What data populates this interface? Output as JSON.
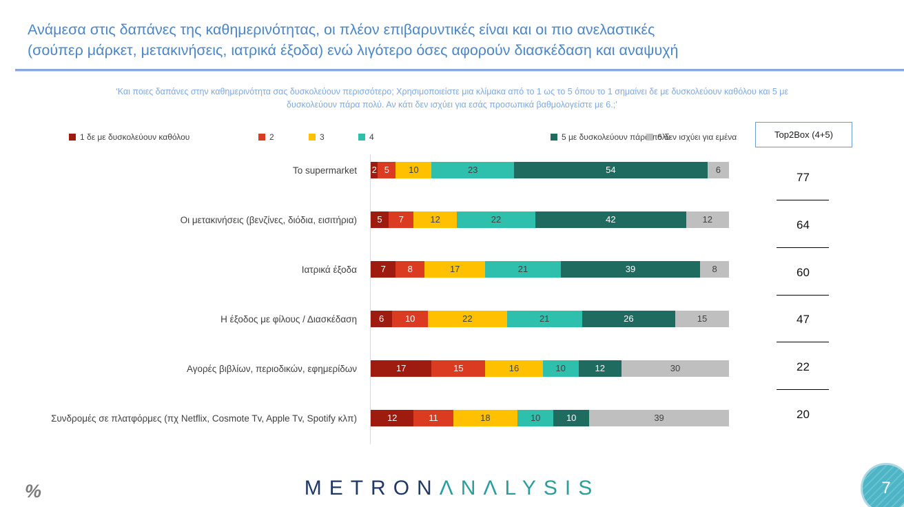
{
  "header": {
    "title_line1": "Ανάμεσα στις δαπάνες της καθημερινότητας, οι πλέον επιβαρυντικές είναι και οι πιο ανελαστικές",
    "title_line2": "(σούπερ μάρκετ, μετακινήσεις, ιατρικά έξοδα) ενώ λιγότερο όσες αφορούν διασκέδαση και αναψυχή",
    "subtitle_line1": "‘Και ποιες δαπάνες στην καθημερινότητα σας δυσκολεύουν περισσότερο; Χρησιμοποιείστε μια κλίμακα από το 1 ως το 5 όπου το 1 σημαίνει δε με δυσκολεύουν καθόλου και 5 με",
    "subtitle_line2": "δυσκολεύουν πάρα πολύ. Αν κάτι δεν ισχύει για εσάς προσωπικά βαθμολογείστε με 6.;’"
  },
  "legend": [
    {
      "label": "1  δε με δυσκολεύουν καθόλου",
      "color": "#9E1B10"
    },
    {
      "label": "2",
      "color": "#DA3B21"
    },
    {
      "label": "3",
      "color": "#FFC000"
    },
    {
      "label": "4",
      "color": "#2FBFAD"
    },
    {
      "label": "5 με δυσκολεύουν πάρα πολύ",
      "color": "#1F6B60"
    },
    {
      "label": "6 δεν ισχύει για εμένα",
      "color": "#BFBFBF"
    }
  ],
  "top2box": {
    "label": "Top2Box (4+5)",
    "values": [
      77,
      64,
      60,
      47,
      22,
      20
    ]
  },
  "chart_data": {
    "type": "bar",
    "stacked": true,
    "orientation": "horizontal",
    "xlim": [
      0,
      100
    ],
    "value_labels": true,
    "categories": [
      "Το supermarket",
      "Οι μετακινήσεις (βενζίνες, διόδια, εισιτήρια)",
      "Ιατρικά έξοδα",
      "Η έξοδος με φίλους / Διασκέδαση",
      "Αγορές βιβλίων, περιοδικών, εφημερίδων",
      "Συνδρομές σε πλατφόρμες (πχ Netflix, Cosmote Tv, Apple Tv, Spotify κλπ)"
    ],
    "series": [
      {
        "name": "1 δε με δυσκολεύουν καθόλου",
        "color": "#9E1B10",
        "label_color": "#FFFFFF",
        "values": [
          2,
          5,
          7,
          6,
          17,
          12
        ]
      },
      {
        "name": "2",
        "color": "#DA3B21",
        "label_color": "#FFFFFF",
        "values": [
          5,
          7,
          8,
          10,
          15,
          11
        ]
      },
      {
        "name": "3",
        "color": "#FFC000",
        "label_color": "#404040",
        "values": [
          10,
          12,
          17,
          22,
          16,
          18
        ]
      },
      {
        "name": "4",
        "color": "#2FBFAD",
        "label_color": "#404040",
        "values": [
          23,
          22,
          21,
          21,
          10,
          10
        ]
      },
      {
        "name": "5 με δυσκολεύουν πάρα πολύ",
        "color": "#1F6B60",
        "label_color": "#FFFFFF",
        "values": [
          54,
          42,
          39,
          26,
          12,
          10
        ]
      },
      {
        "name": "6 δεν ισχύει για εμένα",
        "color": "#BFBFBF",
        "label_color": "#404040",
        "values": [
          6,
          12,
          8,
          15,
          30,
          39
        ]
      }
    ]
  },
  "footer": {
    "logo_metron": "METRON",
    "logo_analysis": "ΛNΛLYSIS",
    "percent_mark": "%",
    "page_number": "7"
  }
}
